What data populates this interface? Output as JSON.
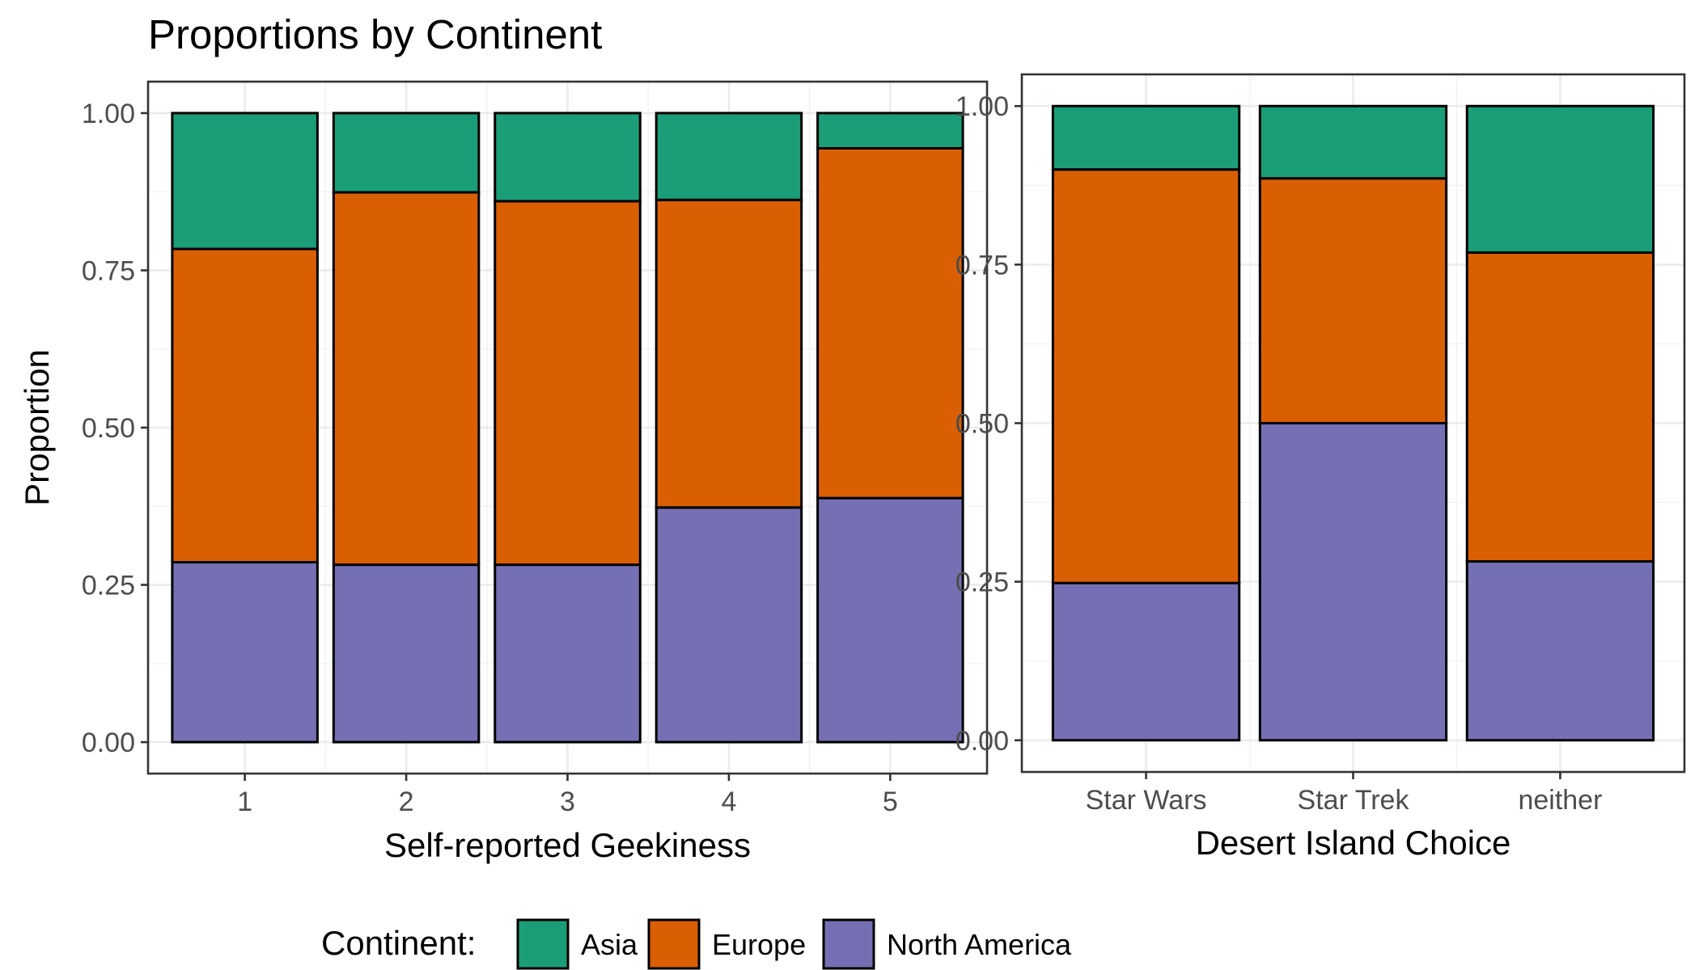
{
  "title": "Proportions by Continent",
  "chart_data": [
    {
      "type": "bar",
      "stacked": true,
      "xlabel": "Self-reported Geekiness",
      "ylabel": "Proportion",
      "ylim": [
        0,
        1
      ],
      "yticks": [
        "0.00",
        "0.25",
        "0.50",
        "0.75",
        "1.00"
      ],
      "grid": true,
      "categories": [
        "1",
        "2",
        "3",
        "4",
        "5"
      ],
      "series": [
        {
          "name": "North America",
          "values": [
            0.286,
            0.282,
            0.282,
            0.373,
            0.388
          ]
        },
        {
          "name": "Europe",
          "values": [
            0.498,
            0.592,
            0.578,
            0.489,
            0.556
          ]
        },
        {
          "name": "Asia",
          "values": [
            0.216,
            0.126,
            0.14,
            0.138,
            0.056
          ]
        }
      ]
    },
    {
      "type": "bar",
      "stacked": true,
      "xlabel": "Desert Island Choice",
      "ylabel": "",
      "ylim": [
        0,
        1
      ],
      "yticks": [
        "0.00",
        "0.25",
        "0.50",
        "0.75",
        "1.00"
      ],
      "grid": true,
      "categories": [
        "Star Wars",
        "Star Trek",
        "neither"
      ],
      "series": [
        {
          "name": "North America",
          "values": [
            0.248,
            0.5,
            0.282
          ]
        },
        {
          "name": "Europe",
          "values": [
            0.652,
            0.386,
            0.487
          ]
        },
        {
          "name": "Asia",
          "values": [
            0.1,
            0.114,
            0.231
          ]
        }
      ]
    }
  ],
  "legend": {
    "title": "Continent:",
    "position": "bottom",
    "items": [
      {
        "label": "Asia",
        "color": "#1b9e77"
      },
      {
        "label": "Europe",
        "color": "#d95f02"
      },
      {
        "label": "North America",
        "color": "#7570b3"
      }
    ]
  },
  "colors": {
    "North America": "#7570b3",
    "Europe": "#d95f02",
    "Asia": "#1b9e77"
  }
}
